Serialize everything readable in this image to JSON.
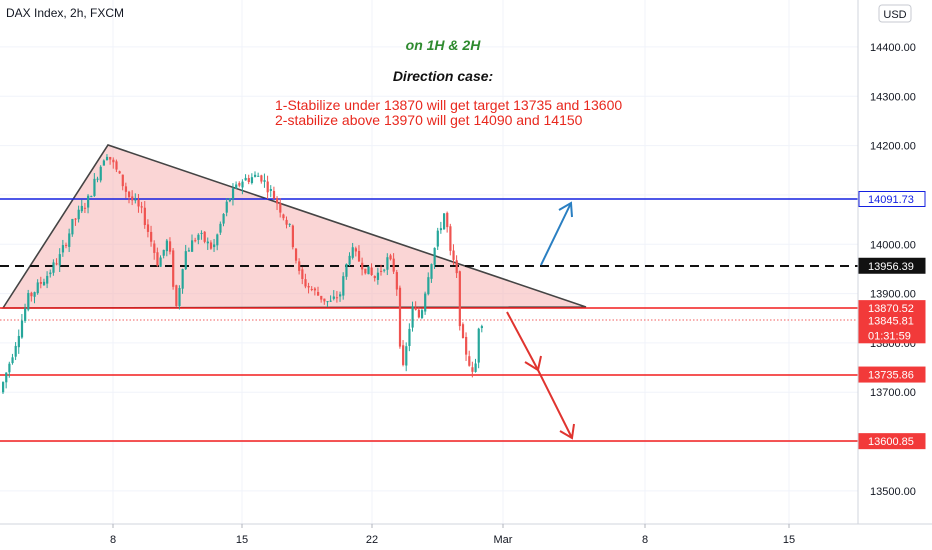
{
  "header": {
    "symbol_line": "DAX Index, 2h, FXCM",
    "currency_button": "USD"
  },
  "annotations": {
    "timeframe": "on 1H & 2H",
    "heading": "Direction case:",
    "line1": "1-Stabilize under 13870 will get target 13735 and 13600",
    "line2": "2-stabilize above 13970 will get 14090 and 14150"
  },
  "colors": {
    "up": "#26a69a",
    "down": "#ef5350",
    "triangle_fill": "#f6b3b3",
    "blue_line": "#1420e0",
    "red_line": "#f21d1d",
    "arrow_blue": "#2a7fc2",
    "arrow_red": "#e0342f",
    "timeframe_text": "#2e8a2e",
    "target_text": "#e8281e"
  },
  "chart_data": {
    "type": "candlestick",
    "title": "DAX Index, 2h, FXCM",
    "y_axis_ticks": [
      "14400.00",
      "14300.00",
      "14200.00",
      "14100.00",
      "14000.00",
      "13900.00",
      "13800.00",
      "13700.00",
      "13600.00",
      "13500.00"
    ],
    "x_axis_ticks": [
      "8",
      "15",
      "22",
      "Mar",
      "8",
      "15"
    ],
    "ylim": [
      13420,
      14460
    ],
    "price_labels": [
      {
        "text": "14091.73",
        "value": 14091.73,
        "style": "blue"
      },
      {
        "text": "13956.39",
        "value": 13956.39,
        "style": "black"
      },
      {
        "text": "13870.52",
        "value": 13870.52,
        "style": "red"
      },
      {
        "text": "13845.81",
        "value": 13845.81,
        "style": "red",
        "countdown": "01:31:59"
      },
      {
        "text": "13735.86",
        "value": 13735.86,
        "style": "red"
      },
      {
        "text": "13600.85",
        "value": 13600.85,
        "style": "red"
      }
    ],
    "horizontal_levels": [
      {
        "value": 14091.73,
        "style": "blue-solid"
      },
      {
        "value": 13956.39,
        "style": "black-dashed"
      },
      {
        "value": 13870.52,
        "style": "red-solid"
      },
      {
        "value": 13845.81,
        "style": "red-dotted"
      },
      {
        "value": 13735.86,
        "style": "red-solid"
      },
      {
        "value": 13600.85,
        "style": "red-solid"
      }
    ],
    "triangle_pattern": {
      "apex_value": 14204,
      "base_value": 13870
    }
  }
}
